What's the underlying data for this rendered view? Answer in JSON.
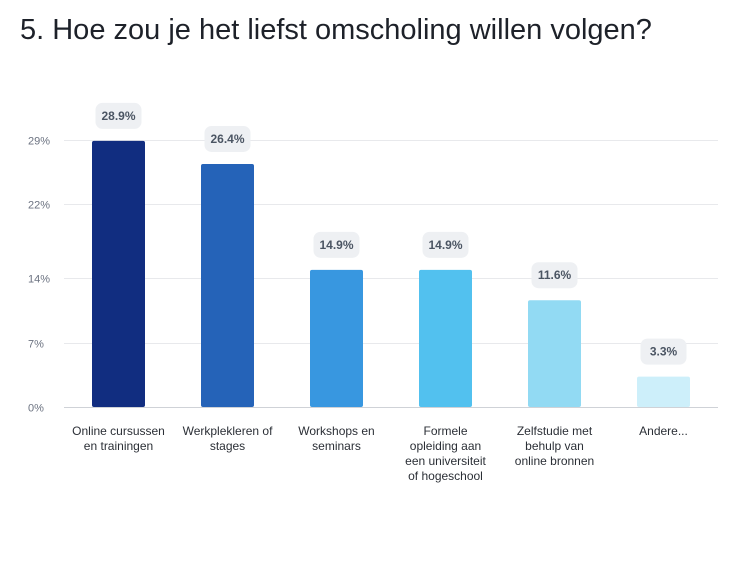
{
  "title": "5. Hoe zou je het liefst omscholing willen volgen?",
  "chart_data": {
    "type": "bar",
    "title": "5. Hoe zou je het liefst omscholing willen volgen?",
    "categories": [
      [
        "Online cursussen",
        "en trainingen"
      ],
      [
        "Werkplekleren of",
        "stages"
      ],
      [
        "Workshops en",
        "seminars"
      ],
      [
        "Formele",
        "opleiding aan",
        "een universiteit",
        "of hogeschool"
      ],
      [
        "Zelfstudie met",
        "behulp van",
        "online bronnen"
      ],
      [
        "Andere..."
      ]
    ],
    "values": [
      28.9,
      26.4,
      14.9,
      14.9,
      11.6,
      3.3
    ],
    "value_labels": [
      "28.9%",
      "26.4%",
      "14.9%",
      "14.9%",
      "11.6%",
      "3.3%"
    ],
    "colors": [
      "#112d80",
      "#2563b8",
      "#3897e0",
      "#52c1ef",
      "#92daf3",
      "#cdeffa"
    ],
    "yticks": [
      0,
      7,
      14,
      22,
      29
    ],
    "ytick_labels": [
      "0%",
      "7%",
      "14%",
      "22%",
      "29%"
    ],
    "ylim": [
      0,
      29
    ],
    "grid": true,
    "xlabel": "",
    "ylabel": ""
  }
}
